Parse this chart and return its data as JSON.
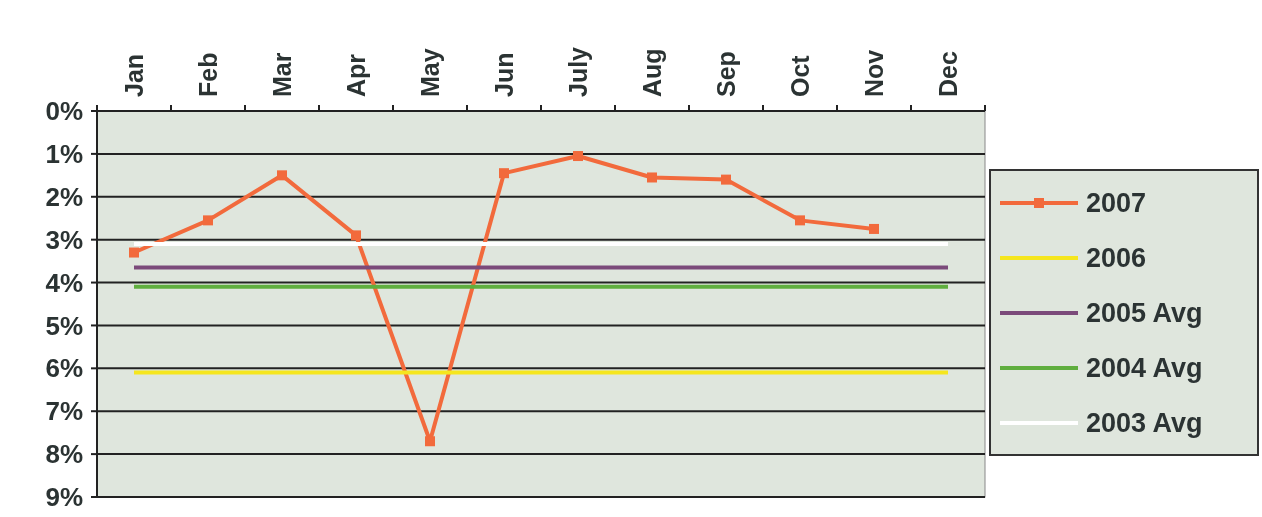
{
  "chart_data": {
    "type": "line",
    "categories": [
      "Jan",
      "Feb",
      "Mar",
      "Apr",
      "May",
      "Jun",
      "July",
      "Aug",
      "Sep",
      "Oct",
      "Nov",
      "Dec"
    ],
    "series": [
      {
        "name": "2007",
        "color": "#f26a3c",
        "marker": "square",
        "values": [
          3.3,
          2.55,
          1.5,
          2.9,
          7.7,
          1.45,
          1.05,
          1.55,
          1.6,
          2.55,
          2.75,
          null
        ]
      },
      {
        "name": "2006",
        "color": "#f5e61e",
        "values": [
          6.1,
          6.1,
          6.1,
          6.1,
          6.1,
          6.1,
          6.1,
          6.1,
          6.1,
          6.1,
          6.1,
          6.1
        ]
      },
      {
        "name": "2005 Avg",
        "color": "#7b4a7a",
        "values": [
          3.65,
          3.65,
          3.65,
          3.65,
          3.65,
          3.65,
          3.65,
          3.65,
          3.65,
          3.65,
          3.65,
          3.65
        ]
      },
      {
        "name": "2004 Avg",
        "color": "#5fae3e",
        "values": [
          4.1,
          4.1,
          4.1,
          4.1,
          4.1,
          4.1,
          4.1,
          4.1,
          4.1,
          4.1,
          4.1,
          4.1
        ]
      },
      {
        "name": "2003 Avg",
        "color": "#ffffff",
        "values": [
          3.1,
          3.1,
          3.1,
          3.1,
          3.1,
          3.1,
          3.1,
          3.1,
          3.1,
          3.1,
          3.1,
          3.1
        ]
      }
    ],
    "ylim": [
      9,
      0
    ],
    "yticks": [
      {
        "value": 0,
        "label": "0%"
      },
      {
        "value": 1,
        "label": "1%"
      },
      {
        "value": 2,
        "label": "2%"
      },
      {
        "value": 3,
        "label": "3%"
      },
      {
        "value": 4,
        "label": "4%"
      },
      {
        "value": 5,
        "label": "5%"
      },
      {
        "value": 6,
        "label": "6%"
      },
      {
        "value": 7,
        "label": "7%"
      },
      {
        "value": 8,
        "label": "8%"
      },
      {
        "value": 9,
        "label": "9%"
      }
    ],
    "grid": "y",
    "legend": "right"
  }
}
